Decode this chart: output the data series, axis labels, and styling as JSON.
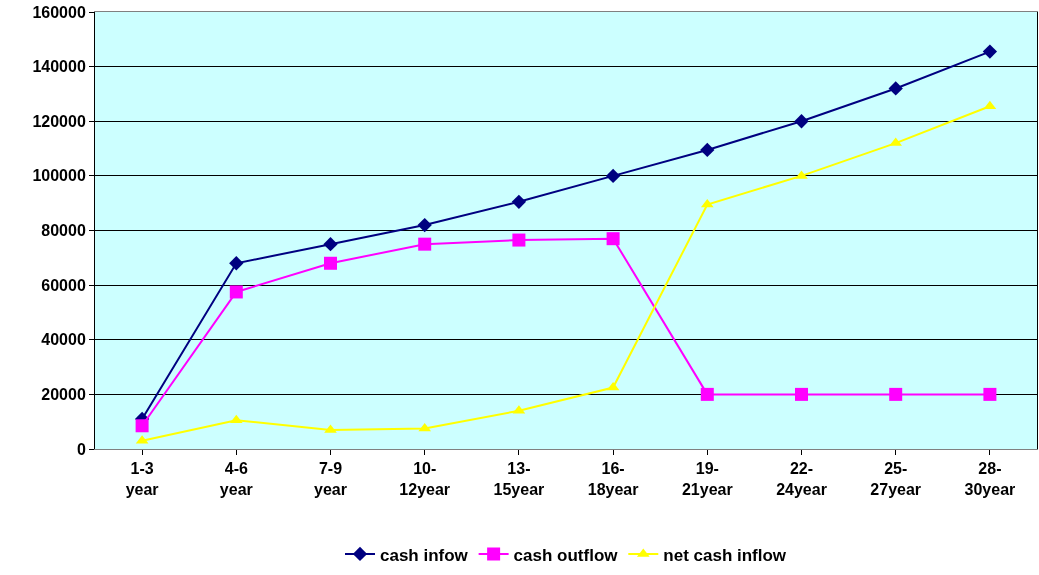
{
  "chart_data": {
    "type": "line",
    "categories": [
      "1-3\nyear",
      "4-6\nyear",
      "7-9\nyear",
      "10-\n12year",
      "13-\n15year",
      "16-\n18year",
      "19-\n21year",
      "22-\n24year",
      "25-\n27year",
      "28-\n30year"
    ],
    "series": [
      {
        "name": "cash infow",
        "color": "#000080",
        "marker": "diamond",
        "values": [
          11000,
          68000,
          75000,
          82000,
          90500,
          100000,
          109500,
          120000,
          132000,
          145500
        ]
      },
      {
        "name": "cash outflow",
        "color": "#ff00ff",
        "marker": "square",
        "values": [
          8500,
          57500,
          68000,
          75000,
          76500,
          77000,
          20000,
          20000,
          20000,
          20000
        ]
      },
      {
        "name": "net cash inflow",
        "color": "#ffff00",
        "marker": "triangle",
        "values": [
          3000,
          10500,
          7000,
          7500,
          14000,
          22500,
          89500,
          100000,
          112000,
          125500
        ]
      }
    ],
    "ylim": [
      0,
      160000
    ],
    "yticks": [
      0,
      20000,
      40000,
      60000,
      80000,
      100000,
      120000,
      140000,
      160000
    ],
    "grid": "y",
    "legend": "bottom"
  }
}
